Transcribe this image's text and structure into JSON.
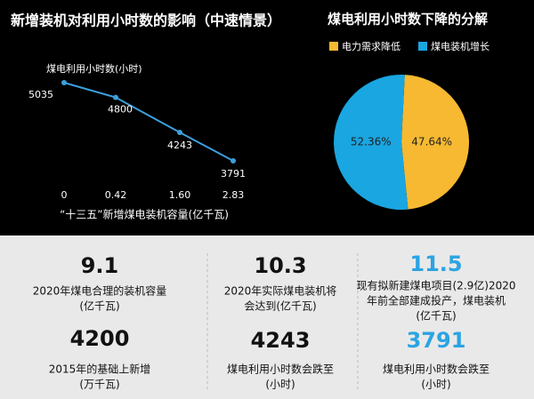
{
  "chart_data": [
    {
      "type": "line",
      "title": "新增装机对利用小时数的影响（中速情景）",
      "y_label": "煤电利用小时数(小时)",
      "x_label": "“十三五”新增煤电装机容量(亿千瓦)",
      "categories": [
        "0",
        "0.42",
        "1.60",
        "2.83"
      ],
      "values": [
        5035,
        4800,
        4243,
        3791
      ],
      "color": "#3d9fdc"
    },
    {
      "type": "pie",
      "title": "煤电利用小时数下降的分解",
      "series": [
        {
          "name": "电力需求降低",
          "color": "#f6b931",
          "values": [
            47.64
          ],
          "value_labels": [
            "47.64%"
          ]
        },
        {
          "name": "煤电装机增长",
          "color": "#19a6e1",
          "values": [
            52.36
          ],
          "value_labels": [
            "52.36%"
          ]
        }
      ]
    }
  ],
  "stats": [
    {
      "number": "9.1",
      "lines": [
        "2020年煤电合理的装机容量",
        "(亿千瓦)"
      ],
      "color": "#111111"
    },
    {
      "number": "10.3",
      "lines": [
        "2020年实际煤电装机将",
        "会达到(亿千瓦)"
      ],
      "color": "#111111"
    },
    {
      "number": "11.5",
      "lines": [
        "现有拟新建煤电项目(2.9亿)2020",
        "年前全部建成投产，煤电装机",
        "(亿千瓦)"
      ],
      "color": "#2ba4e2"
    },
    {
      "number": "4200",
      "lines": [
        "2015年的基础上新增",
        "(万千瓦)"
      ],
      "color": "#111111"
    },
    {
      "number": "4243",
      "lines": [
        "煤电利用小时数会跌至",
        "(小时)"
      ],
      "color": "#111111"
    },
    {
      "number": "3791",
      "lines": [
        "煤电利用小时数会跌至",
        "(小时)"
      ],
      "color": "#2ba4e2"
    }
  ]
}
